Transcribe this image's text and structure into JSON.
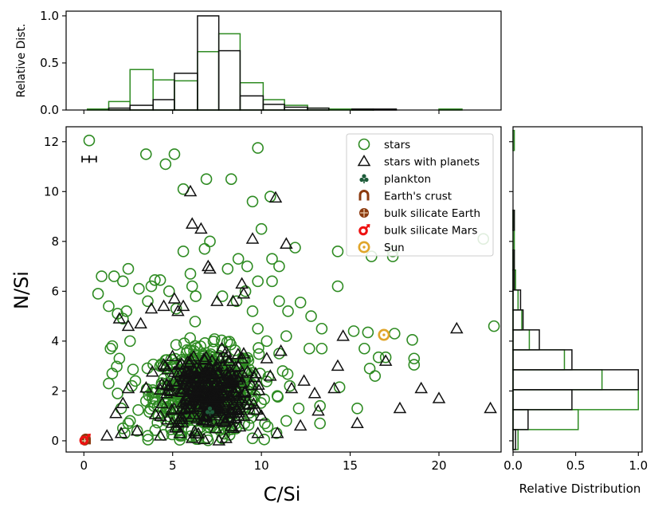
{
  "chart_data": {
    "type": "scatter",
    "xlabel": "C/Si",
    "ylabel": "N/Si",
    "xlim": [
      -1,
      23.5
    ],
    "ylim": [
      -0.45,
      12.6
    ],
    "xticks": [
      "0",
      "5",
      "10",
      "15",
      "20"
    ],
    "yticks": [
      "0",
      "2",
      "4",
      "6",
      "8",
      "10",
      "12"
    ],
    "top_hist": {
      "ylabel": "Relative Dist.",
      "yticks": [
        "0.0",
        "0.5",
        "1.0"
      ],
      "bin_edges": [
        0.2,
        1.4,
        2.6,
        3.9,
        5.1,
        6.4,
        7.6,
        8.8,
        10.1,
        11.3,
        12.6,
        13.8,
        15.1,
        16.3,
        17.6,
        18.8,
        20.0,
        21.3,
        22.5
      ],
      "stars": [
        0.01,
        0.09,
        0.43,
        0.32,
        0.31,
        0.62,
        0.81,
        0.29,
        0.11,
        0.05,
        0.02,
        0.01,
        0.01,
        0.0,
        0.0,
        0.0,
        0.01,
        0.0
      ],
      "planets": [
        0.0,
        0.02,
        0.05,
        0.11,
        0.39,
        1.0,
        0.63,
        0.15,
        0.06,
        0.03,
        0.02,
        0.0,
        0.01,
        0.01,
        0.0,
        0.0,
        0.0,
        0.0
      ]
    },
    "right_hist": {
      "xlabel": "Relative Distribution",
      "xticks": [
        "0.0",
        "0.5",
        "1.0"
      ],
      "bin_edges": [
        -0.35,
        0.45,
        1.25,
        2.05,
        2.85,
        3.65,
        4.45,
        5.25,
        6.05,
        6.85,
        7.65,
        8.45,
        9.25,
        10.05,
        10.85,
        11.65,
        12.45
      ],
      "stars": [
        0.04,
        0.52,
        1.0,
        0.71,
        0.41,
        0.13,
        0.07,
        0.04,
        0.02,
        0.01,
        0.01,
        0.01,
        0.0,
        0.0,
        0.0,
        0.01
      ],
      "planets": [
        0.02,
        0.12,
        0.47,
        1.0,
        0.47,
        0.21,
        0.08,
        0.06,
        0.01,
        0.01,
        0.0,
        0.01,
        0.0,
        0.0,
        0.0,
        0.0
      ]
    },
    "legend": {
      "placement": "top-right",
      "entries": [
        "stars",
        "stars with planets",
        "plankton",
        "Earth's crust",
        "bulk silicate Earth",
        "bulk silicate Mars",
        "Sun"
      ]
    },
    "colors": {
      "stars": "#2e8b22",
      "planets": "#111111",
      "plankton": "#1e5c3a",
      "crust": "#8b3a0f",
      "bse": "#8b3a0f",
      "mars": "#ee1111",
      "sun": "#e0a52a"
    },
    "stars": {
      "outliers": [
        [
          0.3,
          12.05
        ],
        [
          3.5,
          11.5
        ],
        [
          5.1,
          11.5
        ],
        [
          4.6,
          11.1
        ],
        [
          9.8,
          11.75
        ],
        [
          8.3,
          10.5
        ],
        [
          6.9,
          10.5
        ],
        [
          5.6,
          10.1
        ],
        [
          10.5,
          9.8
        ],
        [
          9.5,
          9.6
        ],
        [
          10,
          8.5
        ],
        [
          5.6,
          7.6
        ],
        [
          7.1,
          8.0
        ],
        [
          8.7,
          7.3
        ],
        [
          10.6,
          7.3
        ],
        [
          9.2,
          7.0
        ],
        [
          11.0,
          7.0
        ],
        [
          6.0,
          6.7
        ],
        [
          6.1,
          6.2
        ],
        [
          9.8,
          6.4
        ],
        [
          10.6,
          6.4
        ],
        [
          11.9,
          7.75
        ],
        [
          14.3,
          6.2
        ],
        [
          14.3,
          7.6
        ],
        [
          16.2,
          7.4
        ],
        [
          17.4,
          7.4
        ],
        [
          17.4,
          7.6
        ],
        [
          22.5,
          8.1
        ],
        [
          23.1,
          4.6
        ],
        [
          17.5,
          4.3
        ],
        [
          18.5,
          4.05
        ],
        [
          15.8,
          3.7
        ],
        [
          16.6,
          3.35
        ],
        [
          16.1,
          2.9
        ],
        [
          16.4,
          2.6
        ],
        [
          17,
          3.35
        ],
        [
          18.6,
          3.3
        ],
        [
          18.6,
          3.05
        ],
        [
          16.0,
          4.35
        ],
        [
          15.2,
          4.4
        ],
        [
          14.4,
          2.15
        ],
        [
          15.4,
          1.3
        ],
        [
          13.3,
          1.4
        ],
        [
          13.3,
          0.7
        ],
        [
          12.7,
          3.7
        ],
        [
          13.4,
          3.7
        ],
        [
          13.4,
          4.5
        ],
        [
          12.8,
          5.0
        ],
        [
          11.5,
          5.2
        ],
        [
          12.2,
          5.55
        ],
        [
          11,
          5.6
        ],
        [
          1.0,
          6.6
        ],
        [
          1.7,
          6.6
        ],
        [
          2.2,
          6.4
        ],
        [
          2.5,
          6.9
        ],
        [
          4.3,
          6.45
        ],
        [
          3.1,
          6.1
        ],
        [
          3.8,
          6.2
        ],
        [
          4,
          6.45
        ],
        [
          0.8,
          5.9
        ],
        [
          1.4,
          5.4
        ],
        [
          1.9,
          5.1
        ],
        [
          2.2,
          4.9
        ],
        [
          1.6,
          3.8
        ],
        [
          1.5,
          3.7
        ],
        [
          1.4,
          2.3
        ],
        [
          2.1,
          1.3
        ],
        [
          2.2,
          0.5
        ],
        [
          2.3,
          0.3
        ],
        [
          2.5,
          0.7
        ],
        [
          2.6,
          0.8
        ],
        [
          3.0,
          0.4
        ],
        [
          3.6,
          0.2
        ],
        [
          4.2,
          1.0
        ],
        [
          5.3,
          0.4
        ],
        [
          6.3,
          0.2
        ],
        [
          7.8,
          0.1
        ],
        [
          9.5,
          0.1
        ],
        [
          10.2,
          0.7
        ],
        [
          11.4,
          0.8
        ],
        [
          12.1,
          1.3
        ],
        [
          10.9,
          1.8
        ],
        [
          11.6,
          2.2
        ],
        [
          11.2,
          2.8
        ],
        [
          11.0,
          3.5
        ],
        [
          10.3,
          4.0
        ],
        [
          9.8,
          4.5
        ],
        [
          11.4,
          4.2
        ],
        [
          2.6,
          4.0
        ],
        [
          2.9,
          2.4
        ],
        [
          3.5,
          1.6
        ],
        [
          1.9,
          1.9
        ],
        [
          1.6,
          2.7
        ],
        [
          2.0,
          3.3
        ],
        [
          2.4,
          5.2
        ],
        [
          3.6,
          5.6
        ],
        [
          4.8,
          6.0
        ],
        [
          5.2,
          5.3
        ],
        [
          7.8,
          5.8
        ],
        [
          8.6,
          5.6
        ],
        [
          9.1,
          6.0
        ],
        [
          9.5,
          5.2
        ],
        [
          8.1,
          6.9
        ],
        [
          6.8,
          7.7
        ],
        [
          6.3,
          5.8
        ]
      ],
      "cluster": {
        "center": [
          6.9,
          2.0
        ],
        "spread": [
          1.45,
          0.85
        ],
        "count": 620
      }
    },
    "planets": {
      "outliers": [
        [
          6.0,
          10.0
        ],
        [
          10.8,
          9.75
        ],
        [
          6.1,
          8.7
        ],
        [
          6.6,
          8.5
        ],
        [
          9.5,
          8.1
        ],
        [
          11.4,
          7.9
        ],
        [
          7.0,
          7.0
        ],
        [
          7.1,
          6.9
        ],
        [
          8.9,
          6.3
        ],
        [
          9,
          5.9
        ],
        [
          4.5,
          5.4
        ],
        [
          5.6,
          5.4
        ],
        [
          7.5,
          5.6
        ],
        [
          8.4,
          5.6
        ],
        [
          5.1,
          5.7
        ],
        [
          5.3,
          5.2
        ],
        [
          2.0,
          4.9
        ],
        [
          2.5,
          4.6
        ],
        [
          3.2,
          4.7
        ],
        [
          3.8,
          5.3
        ],
        [
          11.1,
          3.6
        ],
        [
          14.6,
          4.2
        ],
        [
          14.3,
          3.0
        ],
        [
          15.4,
          0.7
        ],
        [
          17.0,
          3.2
        ],
        [
          19.0,
          2.1
        ],
        [
          20.0,
          1.7
        ],
        [
          17.8,
          1.3
        ],
        [
          22.9,
          1.3
        ],
        [
          21.0,
          4.5
        ],
        [
          14.1,
          2.1
        ],
        [
          13.2,
          1.2
        ],
        [
          13.0,
          1.9
        ],
        [
          11.7,
          2.1
        ],
        [
          12.4,
          2.4
        ],
        [
          10.3,
          3.3
        ],
        [
          10.9,
          0.3
        ],
        [
          1.3,
          0.2
        ],
        [
          2.1,
          0.3
        ],
        [
          3.0,
          0.4
        ],
        [
          4.3,
          0.2
        ],
        [
          5.4,
          0.3
        ],
        [
          6.1,
          0.1
        ],
        [
          8.0,
          0.1
        ],
        [
          9.8,
          0.3
        ],
        [
          1.8,
          1.1
        ],
        [
          2.2,
          1.5
        ],
        [
          2.5,
          2.1
        ],
        [
          10.0,
          1.0
        ],
        [
          12.2,
          0.6
        ],
        [
          10.5,
          2.6
        ]
      ],
      "cluster": {
        "center": [
          7.0,
          1.95
        ],
        "spread": [
          1.2,
          0.75
        ],
        "count": 340
      }
    },
    "special_points": {
      "plankton": [
        7.1,
        1.2
      ],
      "crust": [
        0.1,
        0.05
      ],
      "bse": [
        0.05,
        0.0
      ],
      "mars": [
        0.05,
        0.05
      ],
      "sun": [
        16.9,
        4.25
      ]
    },
    "errorbar": {
      "x": 0.3,
      "y": 11.3,
      "xerr": 0.4,
      "yerr": 0.15
    }
  }
}
